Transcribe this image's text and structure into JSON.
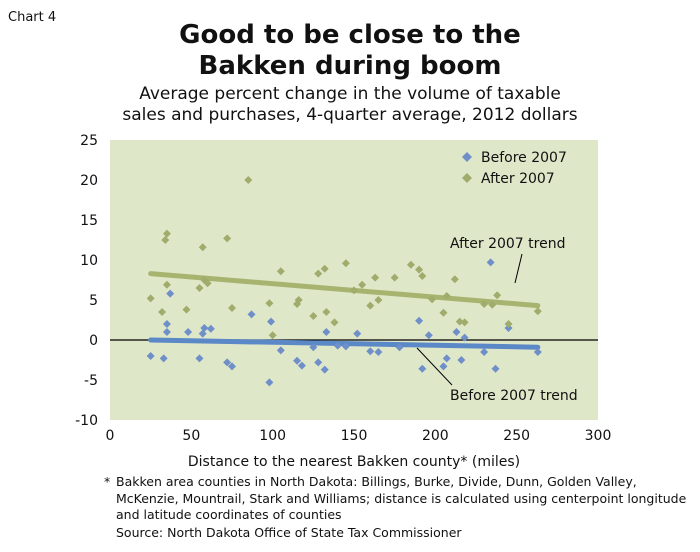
{
  "chart_label": "Chart 4",
  "title_lines": [
    "Good to be close to the",
    "Bakken during boom"
  ],
  "subtitle_lines": [
    "Average percent change in the volume of taxable",
    "sales and purchases, 4-quarter average, 2012 dollars"
  ],
  "footnote_star": "*",
  "footnote": "Bakken area counties in North Dakota: Billings, Burke, Divide, Dunn, Golden Valley, McKenzie, Mountrail, Stark and Williams; distance is calculated using centerpoint longitude and latitude coordinates of counties",
  "source": "Source: North Dakota Office of State Tax Commissioner",
  "colors": {
    "plot_background": "#dfe7c9",
    "before": "#6f8fc9",
    "after": "#9fac6c",
    "after_trend": "#a6b46f",
    "before_trend": "#5b88c6",
    "zero_line": "#000000"
  },
  "chart_data": {
    "type": "scatter",
    "xlabel": "Distance to the nearest Bakken county* (miles)",
    "ylabel": "",
    "xlim": [
      0,
      300
    ],
    "ylim": [
      -10,
      25
    ],
    "x_ticks": [
      0,
      50,
      100,
      150,
      200,
      250,
      300
    ],
    "y_ticks": [
      -10,
      -5,
      0,
      5,
      10,
      15,
      20,
      25
    ],
    "legend_position": "top-right",
    "grid": false,
    "series": [
      {
        "name": "Before 2007",
        "marker": "diamond",
        "points": [
          [
            25,
            -2.0
          ],
          [
            33,
            -2.3
          ],
          [
            35,
            1.0
          ],
          [
            35,
            2.0
          ],
          [
            37,
            5.8
          ],
          [
            48,
            1.0
          ],
          [
            55,
            -2.3
          ],
          [
            57,
            0.8
          ],
          [
            58,
            1.5
          ],
          [
            62,
            1.4
          ],
          [
            72,
            -2.8
          ],
          [
            75,
            -3.3
          ],
          [
            87,
            3.2
          ],
          [
            98,
            -5.3
          ],
          [
            99,
            2.3
          ],
          [
            105,
            -1.3
          ],
          [
            115,
            -2.6
          ],
          [
            118,
            -3.2
          ],
          [
            125,
            -0.9
          ],
          [
            128,
            -2.8
          ],
          [
            132,
            -3.7
          ],
          [
            133,
            1.0
          ],
          [
            140,
            -0.7
          ],
          [
            145,
            -0.8
          ],
          [
            152,
            0.8
          ],
          [
            160,
            -1.4
          ],
          [
            165,
            -1.5
          ],
          [
            178,
            -0.9
          ],
          [
            190,
            2.4
          ],
          [
            192,
            -3.6
          ],
          [
            196,
            0.6
          ],
          [
            205,
            -3.3
          ],
          [
            207,
            -2.3
          ],
          [
            213,
            1.0
          ],
          [
            216,
            -2.5
          ],
          [
            218,
            0.3
          ],
          [
            230,
            -1.5
          ],
          [
            234,
            9.7
          ],
          [
            237,
            -3.6
          ],
          [
            245,
            1.5
          ],
          [
            263,
            -1.5
          ]
        ]
      },
      {
        "name": "After 2007",
        "marker": "diamond",
        "points": [
          [
            25,
            5.2
          ],
          [
            32,
            3.5
          ],
          [
            34,
            12.5
          ],
          [
            35,
            13.3
          ],
          [
            35,
            6.9
          ],
          [
            47,
            3.8
          ],
          [
            55,
            6.5
          ],
          [
            57,
            11.6
          ],
          [
            58,
            7.5
          ],
          [
            60,
            7.1
          ],
          [
            72,
            12.7
          ],
          [
            75,
            4.0
          ],
          [
            85,
            20.0
          ],
          [
            98,
            4.6
          ],
          [
            100,
            0.6
          ],
          [
            105,
            8.6
          ],
          [
            115,
            4.5
          ],
          [
            116,
            5.0
          ],
          [
            125,
            3.0
          ],
          [
            128,
            8.3
          ],
          [
            132,
            8.9
          ],
          [
            133,
            3.5
          ],
          [
            138,
            2.2
          ],
          [
            145,
            9.6
          ],
          [
            150,
            6.2
          ],
          [
            155,
            6.9
          ],
          [
            160,
            4.3
          ],
          [
            163,
            7.8
          ],
          [
            165,
            5.0
          ],
          [
            175,
            7.8
          ],
          [
            185,
            9.4
          ],
          [
            190,
            8.8
          ],
          [
            192,
            8.0
          ],
          [
            198,
            5.1
          ],
          [
            205,
            3.4
          ],
          [
            207,
            5.5
          ],
          [
            212,
            7.6
          ],
          [
            215,
            2.3
          ],
          [
            218,
            2.2
          ],
          [
            230,
            4.5
          ],
          [
            235,
            4.4
          ],
          [
            238,
            5.6
          ],
          [
            245,
            2.0
          ],
          [
            263,
            3.6
          ]
        ]
      }
    ],
    "trend_lines": [
      {
        "name": "After 2007 trend",
        "x": [
          25,
          263
        ],
        "y": [
          8.3,
          4.3
        ]
      },
      {
        "name": "Before 2007 trend",
        "x": [
          25,
          263
        ],
        "y": [
          0.0,
          -0.9
        ]
      }
    ]
  }
}
